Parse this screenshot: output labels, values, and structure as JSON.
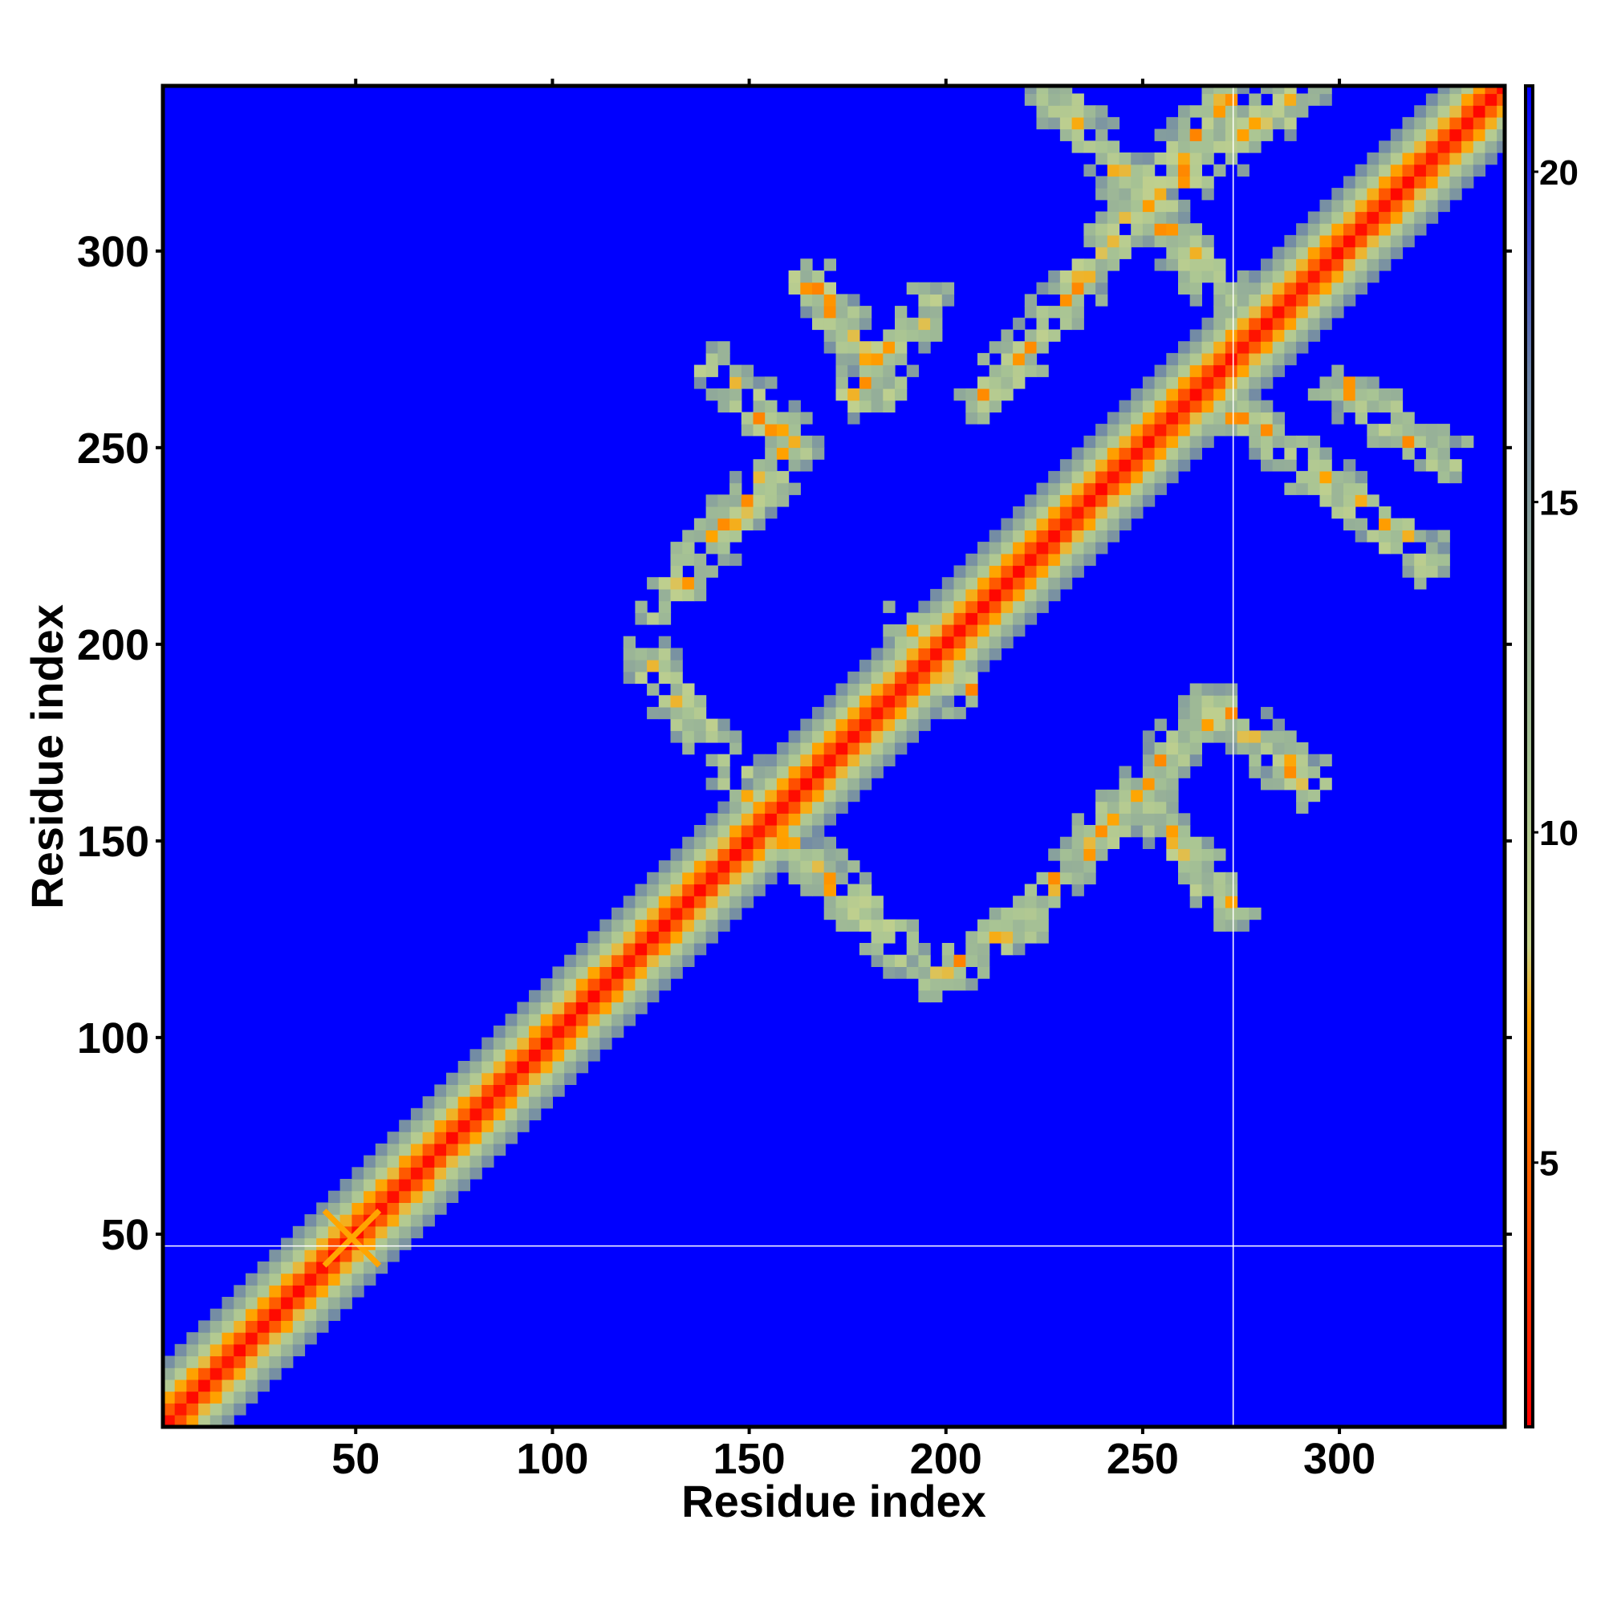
{
  "chart_data": {
    "type": "heatmap",
    "title": "",
    "xlabel": "Residue index",
    "ylabel": "Residue index",
    "xlim": [
      1,
      342
    ],
    "ylim": [
      1,
      342
    ],
    "x_ticks": [
      50,
      100,
      150,
      200,
      250,
      300
    ],
    "y_ticks": [
      50,
      100,
      150,
      200,
      250,
      300
    ],
    "x_tick_labels": [
      "50",
      "100",
      "150",
      "200",
      "250",
      "300"
    ],
    "y_tick_labels": [
      "50",
      "100",
      "150",
      "200",
      "250",
      "300"
    ],
    "colorbar": {
      "range": [
        1,
        21.3
      ],
      "ticks": [
        5,
        10,
        15,
        20
      ],
      "tick_labels": [
        "5",
        "10",
        "15",
        "20"
      ],
      "colors": [
        "#ff0000",
        "#ff3300",
        "#ff6600",
        "#ffa500",
        "#c8d48c",
        "#a8c494",
        "#8fa89a",
        "#6a82a8",
        "#0000ff"
      ],
      "stops": [
        1,
        3,
        5,
        7.2,
        8.3,
        11,
        14,
        17,
        21.3
      ]
    },
    "background_color": "#0000ff",
    "diagonal_band": {
      "width": 11,
      "core_color": "#ff0000",
      "mid_color": "#ff8000",
      "halo_color": "#9fc09a"
    },
    "contact_segments": [
      {
        "from": [
          178,
          264
        ],
        "to": [
          196,
          286
        ],
        "halfwidth": 3.5
      },
      {
        "from": [
          210,
          262
        ],
        "to": [
          271,
          339
        ],
        "halfwidth": 3.5
      },
      {
        "from": [
          228,
          339
        ],
        "to": [
          270,
          289
        ],
        "halfwidth": 3.5
      },
      {
        "from": [
          248,
          310
        ],
        "to": [
          292,
          341
        ],
        "halfwidth": 3.5
      },
      {
        "from": [
          165,
          292
        ],
        "to": [
          186,
          265
        ],
        "halfwidth": 3.5
      },
      {
        "from": [
          142,
          269
        ],
        "to": [
          162,
          251
        ],
        "halfwidth": 3.5
      },
      {
        "from": [
          162,
          251
        ],
        "to": [
          127,
          209
        ],
        "halfwidth": 3.5
      },
      {
        "from": [
          124,
          196
        ],
        "to": [
          150,
          163
        ],
        "halfwidth": 3.5
      },
      {
        "from": [
          155,
          155
        ],
        "to": [
          188,
          123
        ],
        "halfwidth": 3.5
      },
      {
        "from": [
          196,
          116
        ],
        "to": [
          218,
          128
        ],
        "halfwidth": 3.5
      },
      {
        "from": [
          218,
          128
        ],
        "to": [
          268,
          184
        ],
        "halfwidth": 3.5
      },
      {
        "from": [
          268,
          184
        ],
        "to": [
          292,
          165
        ],
        "halfwidth": 3.5
      },
      {
        "from": [
          250,
          160
        ],
        "to": [
          272,
          133
        ],
        "halfwidth": 3.5
      },
      {
        "from": [
          272,
          260
        ],
        "to": [
          322,
          222
        ],
        "halfwidth": 3.5
      },
      {
        "from": [
          300,
          266
        ],
        "to": [
          327,
          247
        ],
        "halfwidth": 3.5
      },
      {
        "from": [
          190,
          205
        ],
        "to": [
          205,
          188
        ],
        "halfwidth": 3.5
      },
      {
        "from": [
          30,
          26
        ],
        "to": [
          46,
          42
        ],
        "halfwidth": 2.5
      }
    ],
    "orange_cross": {
      "center": [
        49,
        49
      ],
      "arm": 7,
      "color": "#ffa500"
    },
    "reference_lines": {
      "x": 273,
      "y": 47,
      "color": "#ffffff"
    }
  }
}
